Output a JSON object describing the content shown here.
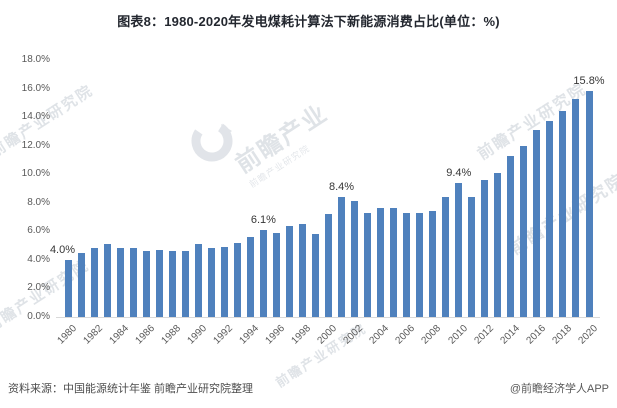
{
  "page": {
    "title": "图表8：1980-2020年发电煤耗计算法下新能源消费占比(单位：%)"
  },
  "chart_data": {
    "type": "bar",
    "title": "1980-2020年发电煤耗计算法下新能源消费占比",
    "unit": "%",
    "xlabel": "",
    "ylabel": "",
    "ylim": [
      0,
      18
    ],
    "ytick_step": 2,
    "ytick_labels": [
      "0.0%",
      "2.0%",
      "4.0%",
      "6.0%",
      "8.0%",
      "10.0%",
      "12.0%",
      "14.0%",
      "16.0%",
      "18.0%"
    ],
    "grid": false,
    "legend": false,
    "bar_color": "#4F81BD",
    "categories": [
      "1980",
      "1981",
      "1982",
      "1983",
      "1984",
      "1985",
      "1986",
      "1987",
      "1988",
      "1989",
      "1990",
      "1991",
      "1992",
      "1993",
      "1994",
      "1995",
      "1996",
      "1997",
      "1998",
      "1999",
      "2000",
      "2001",
      "2002",
      "2003",
      "2004",
      "2005",
      "2006",
      "2007",
      "2008",
      "2009",
      "2010",
      "2011",
      "2012",
      "2013",
      "2014",
      "2015",
      "2016",
      "2017",
      "2018",
      "2019",
      "2020"
    ],
    "values": [
      4.0,
      4.5,
      4.8,
      5.1,
      4.8,
      4.8,
      4.6,
      4.7,
      4.6,
      4.6,
      5.1,
      4.8,
      4.9,
      5.2,
      5.6,
      6.1,
      5.9,
      6.4,
      6.5,
      5.8,
      7.2,
      8.4,
      8.1,
      7.3,
      7.6,
      7.6,
      7.3,
      7.3,
      7.4,
      8.4,
      9.4,
      8.4,
      9.6,
      10.1,
      11.3,
      12.0,
      13.1,
      13.7,
      14.4,
      15.3,
      15.8
    ],
    "data_labels": {
      "1980": "4.0%",
      "1995": "6.1%",
      "2001": "8.4%",
      "2010": "9.4%",
      "2020": "15.8%"
    },
    "x_tick_labels": [
      "1980",
      "1982",
      "1984",
      "1986",
      "1988",
      "1990",
      "1992",
      "1994",
      "1996",
      "1998",
      "2000",
      "2002",
      "2004",
      "2006",
      "2008",
      "2010",
      "2012",
      "2014",
      "2016",
      "2018",
      "2020"
    ]
  },
  "footer": {
    "source": "资料来源：中国能源统计年鉴 前瞻产业研究院整理",
    "credit": "@前瞻经济学人APP"
  },
  "watermark": {
    "brand": "前瞻产业研究院",
    "brand_short": "前瞻产业",
    "logo": "qianzhan-logo"
  }
}
